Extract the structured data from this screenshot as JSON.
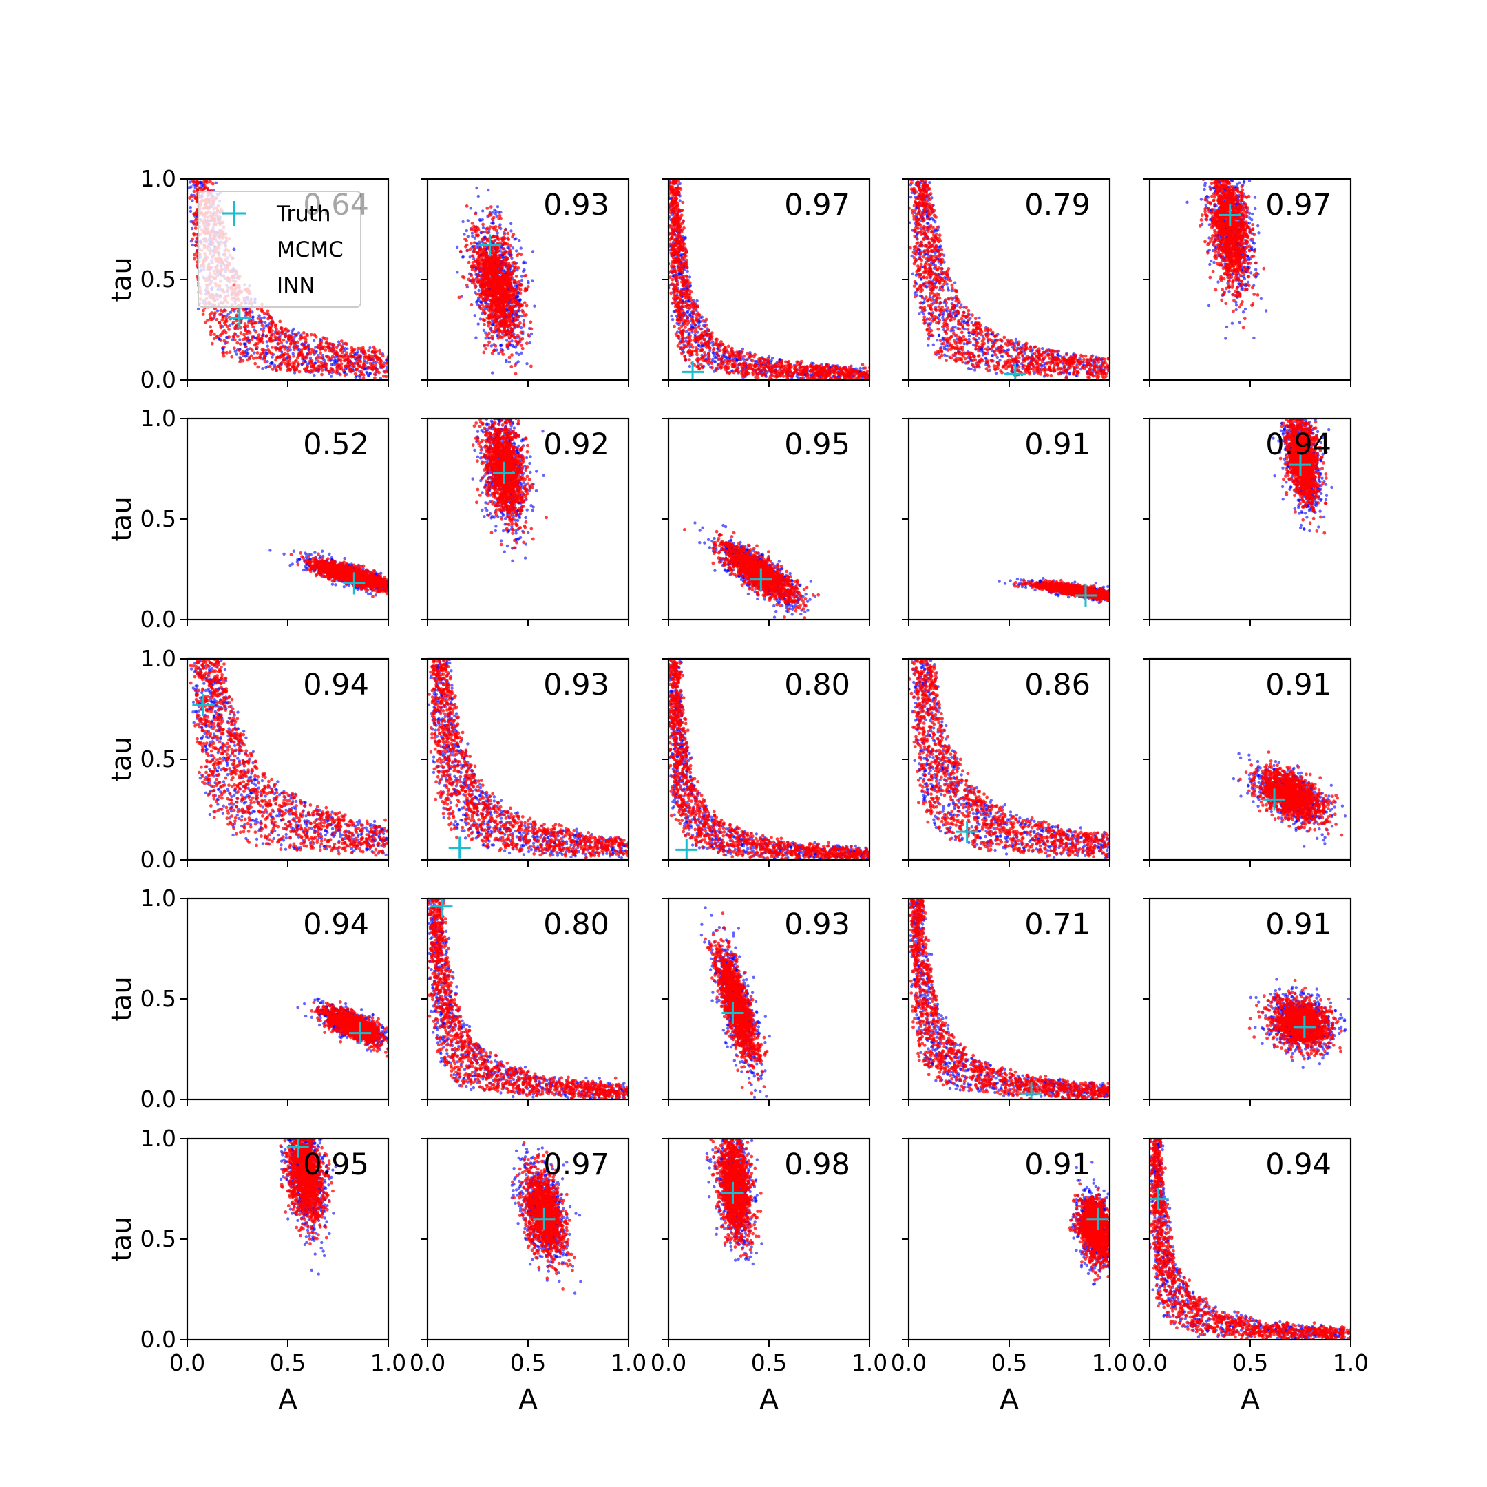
{
  "chart_data": {
    "type": "scatter",
    "rows": 5,
    "cols": 5,
    "xlabel": "A",
    "ylabel": "tau",
    "xlim": [
      0.0,
      1.0
    ],
    "ylim": [
      0.0,
      1.0
    ],
    "x_ticks": [
      "0.0",
      "0.5",
      "1.0"
    ],
    "y_ticks": [
      "0.0",
      "0.5",
      "1.0"
    ],
    "grid": false,
    "legend": {
      "placement": "top-left of first panel",
      "entries": [
        {
          "label": "Truth",
          "marker": "plus",
          "color": "#17becf"
        },
        {
          "label": "MCMC",
          "marker": "dot",
          "color": "#0000ff"
        },
        {
          "label": "INN",
          "marker": "dot",
          "color": "#ff0000"
        }
      ]
    },
    "series_colors": {
      "Truth": "#17becf",
      "MCMC": "#0000ff",
      "INN": "#ff0000"
    },
    "panels": [
      {
        "score": "0.64",
        "truth": [
          0.26,
          0.31
        ],
        "shape": "lcurve",
        "c": 0.08
      },
      {
        "score": "0.93",
        "truth": [
          0.31,
          0.67
        ],
        "shape": "blob",
        "cx": 0.35,
        "cy": 0.47,
        "sx": 0.06,
        "sy": 0.14,
        "rho": -0.4
      },
      {
        "score": "0.97",
        "truth": [
          0.12,
          0.04
        ],
        "shape": "lcurve",
        "c": 0.03
      },
      {
        "score": "0.79",
        "truth": [
          0.53,
          0.03
        ],
        "shape": "lcurve",
        "c": 0.06
      },
      {
        "score": "0.97",
        "truth": [
          0.4,
          0.82
        ],
        "shape": "blob",
        "cx": 0.4,
        "cy": 0.75,
        "sx": 0.05,
        "sy": 0.15,
        "rho": -0.3
      },
      {
        "score": "0.52",
        "truth": [
          0.83,
          0.18
        ],
        "shape": "blob",
        "cx": 0.82,
        "cy": 0.22,
        "sx": 0.1,
        "sy": 0.035,
        "rho": -0.8
      },
      {
        "score": "0.92",
        "truth": [
          0.38,
          0.73
        ],
        "shape": "blob",
        "cx": 0.38,
        "cy": 0.75,
        "sx": 0.05,
        "sy": 0.13,
        "rho": -0.3
      },
      {
        "score": "0.95",
        "truth": [
          0.46,
          0.2
        ],
        "shape": "blob",
        "cx": 0.45,
        "cy": 0.23,
        "sx": 0.09,
        "sy": 0.07,
        "rho": -0.8
      },
      {
        "score": "0.91",
        "truth": [
          0.88,
          0.12
        ],
        "shape": "blob",
        "cx": 0.86,
        "cy": 0.14,
        "sx": 0.11,
        "sy": 0.02,
        "rho": -0.8
      },
      {
        "score": "0.94",
        "truth": [
          0.75,
          0.77
        ],
        "shape": "blob",
        "cx": 0.76,
        "cy": 0.8,
        "sx": 0.04,
        "sy": 0.11,
        "rho": -0.4
      },
      {
        "score": "0.94",
        "truth": [
          0.08,
          0.77
        ],
        "shape": "lcurve",
        "c": 0.1
      },
      {
        "score": "0.93",
        "truth": [
          0.16,
          0.06
        ],
        "shape": "lcurve",
        "c": 0.06
      },
      {
        "score": "0.80",
        "truth": [
          0.09,
          0.05
        ],
        "shape": "lcurve",
        "c": 0.03
      },
      {
        "score": "0.86",
        "truth": [
          0.29,
          0.14
        ],
        "shape": "lcurve",
        "c": 0.07
      },
      {
        "score": "0.91",
        "truth": [
          0.62,
          0.3
        ],
        "shape": "blob",
        "cx": 0.7,
        "cy": 0.32,
        "sx": 0.08,
        "sy": 0.06,
        "rho": -0.5
      },
      {
        "score": "0.94",
        "truth": [
          0.86,
          0.33
        ],
        "shape": "blob",
        "cx": 0.82,
        "cy": 0.37,
        "sx": 0.07,
        "sy": 0.04,
        "rho": -0.7
      },
      {
        "score": "0.80",
        "truth": [
          0.07,
          0.96
        ],
        "shape": "lcurve",
        "c": 0.04
      },
      {
        "score": "0.93",
        "truth": [
          0.32,
          0.43
        ],
        "shape": "blob",
        "cx": 0.34,
        "cy": 0.47,
        "sx": 0.05,
        "sy": 0.14,
        "rho": -0.75
      },
      {
        "score": "0.71",
        "truth": [
          0.61,
          0.03
        ],
        "shape": "lcurve",
        "c": 0.04
      },
      {
        "score": "0.91",
        "truth": [
          0.77,
          0.36
        ],
        "shape": "blob",
        "cx": 0.75,
        "cy": 0.38,
        "sx": 0.07,
        "sy": 0.06,
        "rho": -0.2
      },
      {
        "score": "0.95",
        "truth": [
          0.55,
          0.96
        ],
        "shape": "blob",
        "cx": 0.59,
        "cy": 0.82,
        "sx": 0.045,
        "sy": 0.12,
        "rho": -0.3
      },
      {
        "score": "0.97",
        "truth": [
          0.58,
          0.6
        ],
        "shape": "blob",
        "cx": 0.58,
        "cy": 0.63,
        "sx": 0.05,
        "sy": 0.11,
        "rho": -0.4
      },
      {
        "score": "0.98",
        "truth": [
          0.32,
          0.73
        ],
        "shape": "blob",
        "cx": 0.33,
        "cy": 0.76,
        "sx": 0.04,
        "sy": 0.13,
        "rho": -0.3
      },
      {
        "score": "0.91",
        "truth": [
          0.94,
          0.6
        ],
        "shape": "blob",
        "cx": 0.93,
        "cy": 0.55,
        "sx": 0.04,
        "sy": 0.08,
        "rho": -0.3
      },
      {
        "score": "0.94",
        "truth": [
          0.04,
          0.7
        ],
        "shape": "lcurve",
        "c": 0.03
      }
    ]
  }
}
